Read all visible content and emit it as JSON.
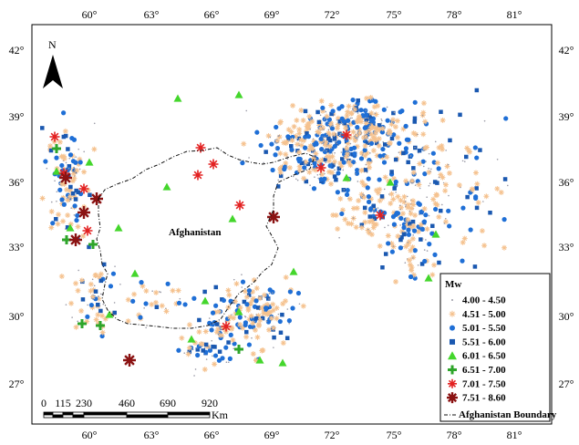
{
  "map": {
    "north_label": "N",
    "country_label": "Afghanistan",
    "colors": {
      "light": "#f5c28f",
      "blue_circle": "#1f6fd6",
      "blue_square": "#1a58b0",
      "green_tri": "#44d62c",
      "green_plus": "#2ea52a",
      "red_star": "#e32222",
      "dark_red_star": "#8b1313",
      "boundary": "#111111"
    },
    "top_ticks": [
      "60°",
      "63°",
      "66°",
      "69°",
      "72°",
      "75°",
      "78°",
      "81°"
    ],
    "bottom_ticks": [
      "60°",
      "63°",
      "66°",
      "69°",
      "72°",
      "75°",
      "78°",
      "81°"
    ],
    "left_ticks": [
      "42°",
      "39°",
      "36°",
      "33°",
      "30°",
      "27°"
    ],
    "right_ticks": [
      "42°",
      "39°",
      "36°",
      "33°",
      "30°",
      "27°"
    ]
  },
  "legend": {
    "title": "Mw",
    "items": [
      {
        "label": "4.00 - 4.50",
        "icon": "small-dot-icon"
      },
      {
        "label": "4.51 - 5.00",
        "icon": "light-star-icon"
      },
      {
        "label": "5.01 - 5.50",
        "icon": "blue-circle-icon"
      },
      {
        "label": "5.51 - 6.00",
        "icon": "blue-square-icon"
      },
      {
        "label": "6.01 - 6.50",
        "icon": "green-triangle-icon"
      },
      {
        "label": "6.51 - 7.00",
        "icon": "green-plus-icon"
      },
      {
        "label": "7.01 - 7.50",
        "icon": "red-asterisk-icon"
      },
      {
        "label": "7.51 - 8.60",
        "icon": "dark-red-asterisk-icon"
      }
    ],
    "boundary_label": "Afghanistan Boundary"
  },
  "scale_bar": {
    "labels": [
      "0",
      "115",
      "230",
      "460",
      "690",
      "920"
    ],
    "unit": "Km"
  }
}
